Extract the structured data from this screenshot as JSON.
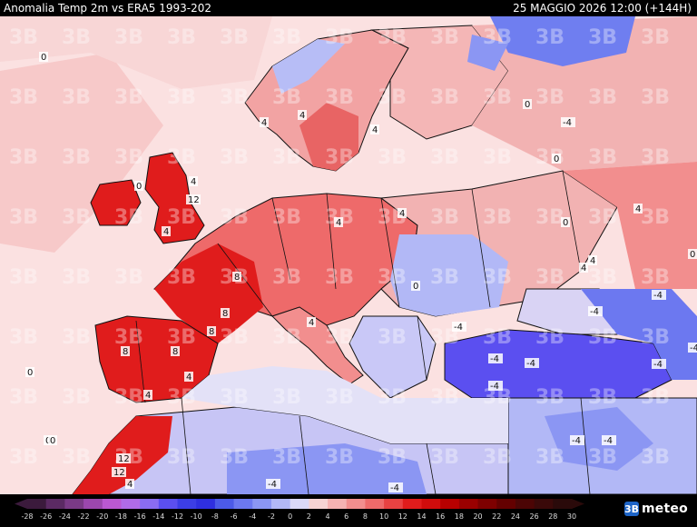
{
  "header": {
    "title": "Anomalia Temp 2m vs ERA5 1993-202",
    "date_time": "25 MAGGIO 2026 12:00 (+144H)"
  },
  "watermark": "3B",
  "brand": {
    "mark": "3B",
    "text": "meteo"
  },
  "legend": {
    "ticks": [
      "-28",
      "-26",
      "-24",
      "-22",
      "-20",
      "-18",
      "-16",
      "-14",
      "-12",
      "-10",
      "-8",
      "-6",
      "-4",
      "-2",
      "0",
      "2",
      "4",
      "6",
      "8",
      "10",
      "12",
      "14",
      "16",
      "18",
      "20",
      "22",
      "24",
      "26",
      "28",
      "30"
    ],
    "colors": [
      "#3b1a3c",
      "#5b2a63",
      "#7a3a86",
      "#9b47ad",
      "#bb58d2",
      "#b06be8",
      "#8a6cf1",
      "#5b4ff0",
      "#3c3ee6",
      "#2f2fe0",
      "#4c5ae8",
      "#6c78f0",
      "#8b96f3",
      "#b2b8f6",
      "#dad8f7",
      "#f6d3d3",
      "#f5b2b2",
      "#f28e8e",
      "#ee6a6a",
      "#e84242",
      "#e01c1c",
      "#d00c0c",
      "#b80000",
      "#9a0000",
      "#7e0000",
      "#640000",
      "#4c0505",
      "#3a0909",
      "#2a0a0a"
    ]
  },
  "map": {
    "sea_color": "#fbe1e1",
    "contour_labels": [
      "0",
      "4",
      "4",
      "4",
      "4",
      "0",
      "12",
      "4",
      "8",
      "8",
      "8",
      "4",
      "8",
      "8",
      "4",
      "12",
      "12",
      "4",
      "0",
      "0",
      "4",
      "0",
      "0",
      "4",
      "-4",
      "-4",
      "-4",
      "-4",
      "-4",
      "-4",
      "-4",
      "-4",
      "-4",
      "-4",
      "-4",
      "0",
      "4",
      "4",
      "4",
      "4",
      "-4",
      "-4",
      "0",
      "0",
      "0"
    ]
  }
}
